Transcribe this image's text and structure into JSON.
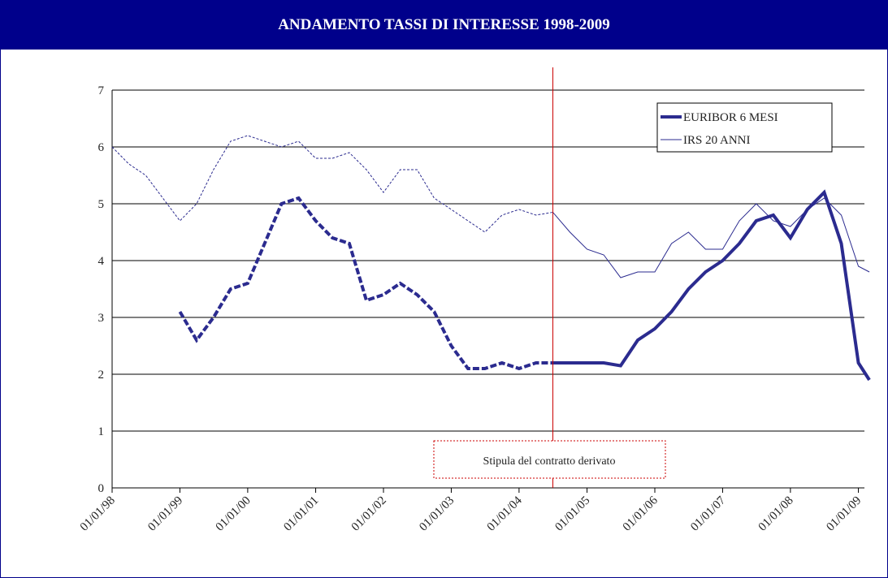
{
  "chart_data": {
    "type": "line",
    "title": "ANDAMENTO TASSI DI INTERESSE 1998-2009",
    "x": [
      "01/01/98",
      "01/04/98",
      "01/07/98",
      "01/10/98",
      "01/01/99",
      "01/04/99",
      "01/07/99",
      "01/10/99",
      "01/01/00",
      "01/04/00",
      "01/07/00",
      "01/10/00",
      "01/01/01",
      "01/04/01",
      "01/07/01",
      "01/10/01",
      "01/01/02",
      "01/04/02",
      "01/07/02",
      "01/10/02",
      "01/01/03",
      "01/04/03",
      "01/07/03",
      "01/10/03",
      "01/01/04",
      "01/04/04",
      "01/07/04",
      "01/10/04",
      "01/01/05",
      "01/04/05",
      "01/07/05",
      "01/10/05",
      "01/01/06",
      "01/04/06",
      "01/07/06",
      "01/10/06",
      "01/01/07",
      "01/04/07",
      "01/07/07",
      "01/10/07",
      "01/01/08",
      "01/04/08",
      "01/07/08",
      "01/10/08",
      "01/01/09",
      "01/03/09"
    ],
    "series": [
      {
        "name": "EURIBOR 6 MESI",
        "color": "#2b2b8f",
        "width": 4,
        "values": [
          null,
          null,
          null,
          null,
          3.1,
          2.6,
          3.0,
          3.5,
          3.6,
          4.3,
          5.0,
          5.1,
          4.7,
          4.4,
          4.3,
          3.3,
          3.4,
          3.6,
          3.4,
          3.1,
          2.5,
          2.1,
          2.1,
          2.2,
          2.1,
          2.2,
          2.2,
          2.2,
          2.2,
          2.2,
          2.15,
          2.6,
          2.8,
          3.1,
          3.5,
          3.8,
          4.0,
          4.3,
          4.7,
          4.8,
          4.4,
          4.9,
          5.2,
          4.3,
          2.2,
          1.9
        ]
      },
      {
        "name": "IRS 20 ANNI",
        "color": "#2b2b8f",
        "width": 1,
        "values": [
          6.0,
          5.7,
          5.5,
          5.1,
          4.7,
          5.0,
          5.6,
          6.1,
          6.2,
          6.1,
          6.0,
          6.1,
          5.8,
          5.8,
          5.9,
          5.6,
          5.2,
          5.6,
          5.6,
          5.1,
          4.9,
          4.7,
          4.5,
          4.8,
          4.9,
          4.8,
          4.85,
          4.5,
          4.2,
          4.1,
          3.7,
          3.8,
          3.8,
          4.3,
          4.5,
          4.2,
          4.2,
          4.7,
          5.0,
          4.7,
          4.6,
          4.9,
          5.1,
          4.8,
          3.9,
          3.8
        ]
      }
    ],
    "xlim": [
      "01/01/98",
      "01/03/09"
    ],
    "xticks": [
      "01/01/98",
      "01/01/99",
      "01/01/00",
      "01/01/01",
      "01/01/02",
      "01/01/03",
      "01/01/04",
      "01/01/05",
      "01/01/06",
      "01/01/07",
      "01/01/08",
      "01/01/09"
    ],
    "ylim": [
      0,
      7
    ],
    "yticks": [
      0,
      1,
      2,
      3,
      4,
      5,
      6,
      7
    ],
    "grid": true,
    "marker_x": "01/07/04",
    "marker_color": "#cc0000",
    "annotation": "Stipula del contratto derivato",
    "legend": "upper right"
  }
}
